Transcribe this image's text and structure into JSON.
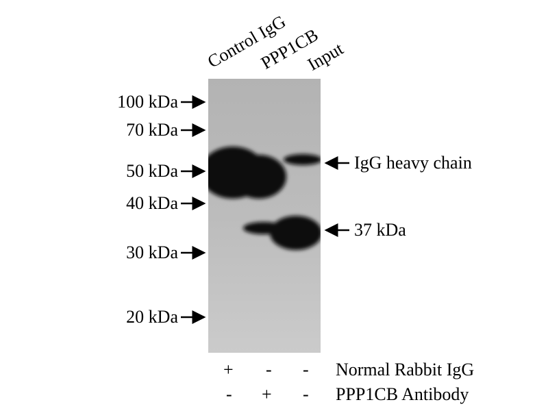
{
  "lanes": [
    "Control IgG",
    "PPP1CB",
    "Input"
  ],
  "markers": [
    "100 kDa",
    "70 kDa",
    "50 kDa",
    "40 kDa",
    "30 kDa",
    "20 kDa"
  ],
  "right_labels": [
    "IgG heavy chain",
    "37 kDa"
  ],
  "conditions": [
    {
      "label": "Normal Rabbit IgG",
      "signs": [
        "+",
        "-",
        "-"
      ]
    },
    {
      "label": "PPP1CB Antibody",
      "signs": [
        "-",
        "+",
        "-"
      ]
    }
  ],
  "colors": {
    "membrane": "#b9b9b9",
    "band": "#0e0e0e"
  }
}
